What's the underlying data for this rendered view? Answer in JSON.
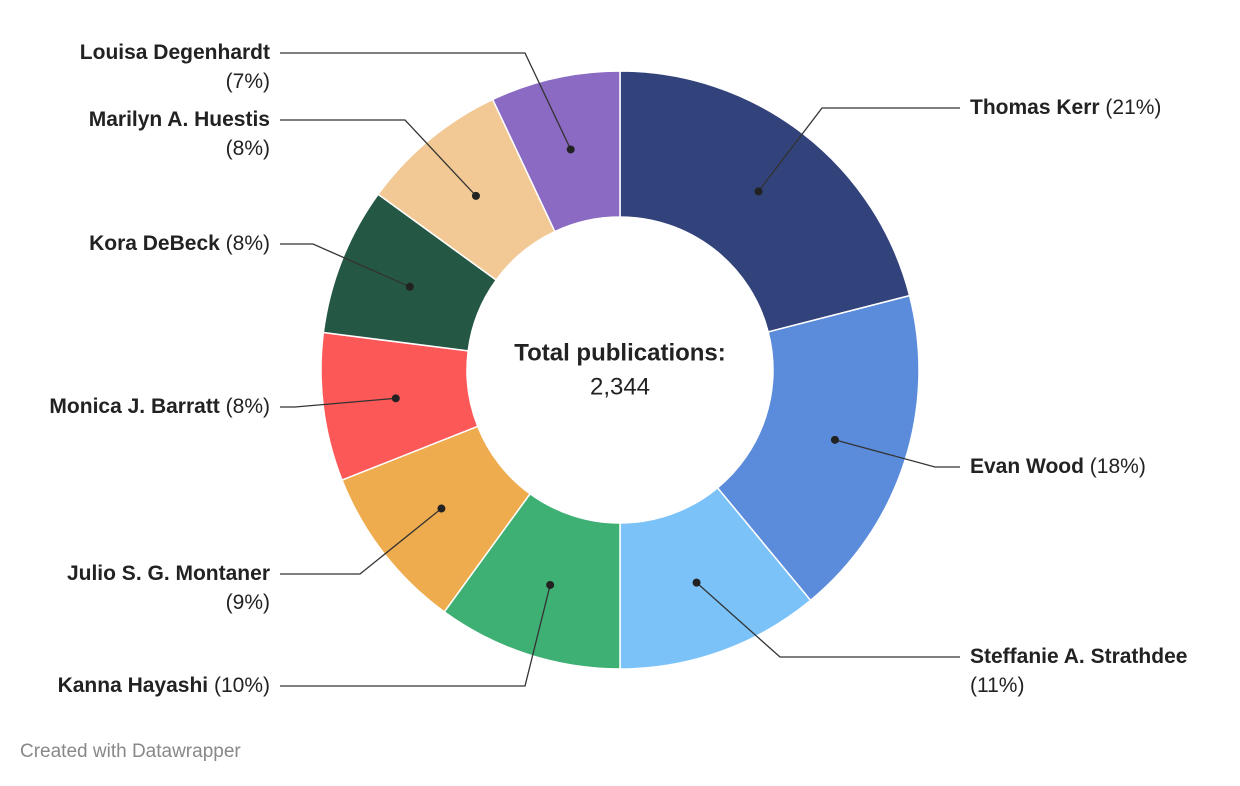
{
  "chart_data": {
    "type": "donut",
    "categories": [
      "Thomas Kerr",
      "Evan Wood",
      "Steffanie A. Strathdee",
      "Kanna Hayashi",
      "Julio S. G. Montaner",
      "Monica J. Barratt",
      "Kora DeBeck",
      "Marilyn A. Huestis",
      "Louisa Degenhardt"
    ],
    "values": [
      21,
      18,
      11,
      10,
      9,
      8,
      8,
      8,
      7
    ],
    "value_labels": [
      "(21%)",
      "(18%)",
      "(11%)",
      "(10%)",
      "(9%)",
      "(8%)",
      "(8%)",
      "(8%)",
      "(7%)"
    ],
    "colors": [
      "#32427a",
      "#5b8bdb",
      "#7bc2f9",
      "#3eb073",
      "#efac4e",
      "#fd5858",
      "#245744",
      "#f2c995",
      "#8a6ac3"
    ],
    "center_title": "Total publications:",
    "center_value": "2,344",
    "footer": "Created with Datawrapper"
  }
}
